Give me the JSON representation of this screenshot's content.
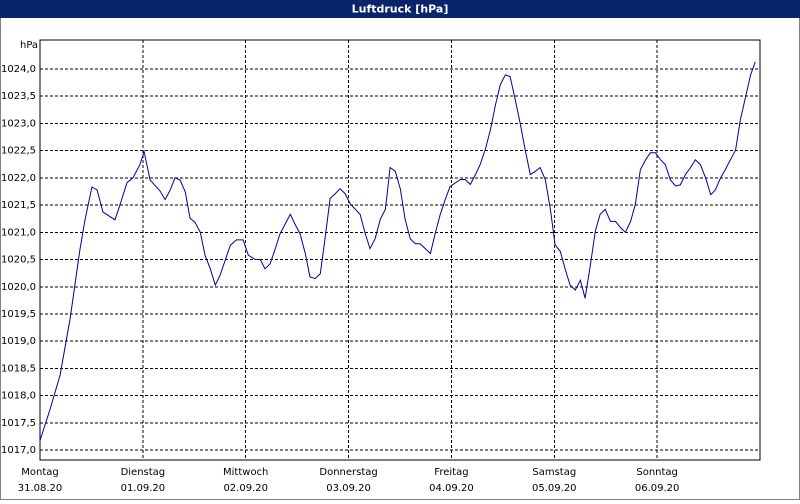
{
  "chart_data": {
    "type": "line",
    "title": "Luftdruck [hPa]",
    "y_unit": "hPa",
    "xlim": [
      0,
      168
    ],
    "xticks": [
      {
        "value": 0,
        "label": "Montag",
        "date": "31.08.20"
      },
      {
        "value": 24,
        "label": "Dienstag",
        "date": "01.09.20"
      },
      {
        "value": 48,
        "label": "Mittwoch",
        "date": "02.09.20"
      },
      {
        "value": 72,
        "label": "Donnerstag",
        "date": "03.09.20"
      },
      {
        "value": 96,
        "label": "Freitag",
        "date": "04.09.20"
      },
      {
        "value": 120,
        "label": "Samstag",
        "date": "05.09.20"
      },
      {
        "value": 144,
        "label": "Sonntag",
        "date": "06.09.20"
      }
    ],
    "ylim": [
      1016.82,
      1024.53
    ],
    "yticks": [
      {
        "value": 1017.0,
        "label": "1017,0"
      },
      {
        "value": 1017.5,
        "label": "1017,5"
      },
      {
        "value": 1018.0,
        "label": "1018,0"
      },
      {
        "value": 1018.5,
        "label": "1018,5"
      },
      {
        "value": 1019.0,
        "label": "1019,0"
      },
      {
        "value": 1019.5,
        "label": "1019,5"
      },
      {
        "value": 1020.0,
        "label": "1020,0"
      },
      {
        "value": 1020.5,
        "label": "1020,5"
      },
      {
        "value": 1021.0,
        "label": "1021,0"
      },
      {
        "value": 1021.5,
        "label": "1021,5"
      },
      {
        "value": 1022.0,
        "label": "1022,0"
      },
      {
        "value": 1022.5,
        "label": "1022,5"
      },
      {
        "value": 1023.0,
        "label": "1023,0"
      },
      {
        "value": 1023.5,
        "label": "1023,5"
      },
      {
        "value": 1024.0,
        "label": "1024,0"
      }
    ],
    "grid": true,
    "series": [
      {
        "name": "Luftdruck",
        "color": "#0000a0",
        "x": [
          0.0,
          2.3,
          4.7,
          7.0,
          9.3,
          10.5,
          12.1,
          13.3,
          14.7,
          17.5,
          18.7,
          20.3,
          21.7,
          23.3,
          24.3,
          25.7,
          28.0,
          29.2,
          30.4,
          31.5,
          32.7,
          33.9,
          35.0,
          36.2,
          37.4,
          38.5,
          39.7,
          40.9,
          42.0,
          43.2,
          44.4,
          45.8,
          47.4,
          48.6,
          50.2,
          51.4,
          52.5,
          53.7,
          54.9,
          56.0,
          57.2,
          58.4,
          59.5,
          60.7,
          61.9,
          63.0,
          64.2,
          65.4,
          66.5,
          67.7,
          68.9,
          70.0,
          71.2,
          72.4,
          74.7,
          75.9,
          77.0,
          78.2,
          79.4,
          80.6,
          81.7,
          82.9,
          84.1,
          85.2,
          86.4,
          87.6,
          88.7,
          89.9,
          91.1,
          92.2,
          93.4,
          94.6,
          95.7,
          98.1,
          99.2,
          100.4,
          101.6,
          102.7,
          103.9,
          105.1,
          106.3,
          107.4,
          108.6,
          109.7,
          110.9,
          112.1,
          113.2,
          114.4,
          115.6,
          116.7,
          117.9,
          119.1,
          120.2,
          121.4,
          122.6,
          123.7,
          124.9,
          126.1,
          127.2,
          128.4,
          129.6,
          130.7,
          131.9,
          133.1,
          134.3,
          135.4,
          136.6,
          137.8,
          138.9,
          140.1,
          141.3,
          142.4,
          143.6,
          144.8,
          145.9,
          147.1,
          148.3,
          149.4,
          150.6,
          151.8,
          152.9,
          154.1,
          155.3,
          156.5,
          157.6,
          158.8,
          159.9,
          161.1,
          162.3,
          163.4,
          164.6,
          165.8,
          166.9
        ],
        "values": [
          1017.18,
          1017.74,
          1018.38,
          1019.4,
          1020.68,
          1021.23,
          1021.83,
          1021.78,
          1021.37,
          1021.23,
          1021.51,
          1021.91,
          1022.0,
          1022.24,
          1022.48,
          1021.96,
          1021.76,
          1021.6,
          1021.78,
          1022.0,
          1021.96,
          1021.74,
          1021.26,
          1021.18,
          1021.0,
          1020.58,
          1020.34,
          1020.03,
          1020.21,
          1020.48,
          1020.76,
          1020.86,
          1020.86,
          1020.58,
          1020.5,
          1020.5,
          1020.33,
          1020.42,
          1020.7,
          1020.97,
          1021.15,
          1021.33,
          1021.15,
          1020.97,
          1020.61,
          1020.18,
          1020.15,
          1020.24,
          1020.88,
          1021.62,
          1021.71,
          1021.8,
          1021.71,
          1021.52,
          1021.33,
          1020.97,
          1020.7,
          1020.88,
          1021.24,
          1021.42,
          1022.19,
          1022.12,
          1021.79,
          1021.24,
          1020.88,
          1020.79,
          1020.79,
          1020.7,
          1020.61,
          1020.97,
          1021.33,
          1021.61,
          1021.84,
          1021.97,
          1021.97,
          1021.88,
          1022.06,
          1022.24,
          1022.52,
          1022.88,
          1023.35,
          1023.71,
          1023.89,
          1023.86,
          1023.43,
          1022.98,
          1022.52,
          1022.06,
          1022.12,
          1022.19,
          1021.97,
          1021.42,
          1020.77,
          1020.65,
          1020.31,
          1020.03,
          1019.94,
          1020.12,
          1019.79,
          1020.39,
          1021.03,
          1021.33,
          1021.42,
          1021.2,
          1021.2,
          1021.09,
          1021.0,
          1021.2,
          1021.51,
          1022.15,
          1022.33,
          1022.46,
          1022.46,
          1022.33,
          1022.24,
          1021.96,
          1021.85,
          1021.87,
          1022.06,
          1022.19,
          1022.33,
          1022.24,
          1022.0,
          1021.69,
          1021.78,
          1022.0,
          1022.15,
          1022.33,
          1022.51,
          1023.06,
          1023.47,
          1023.89,
          1024.13
        ]
      }
    ]
  }
}
